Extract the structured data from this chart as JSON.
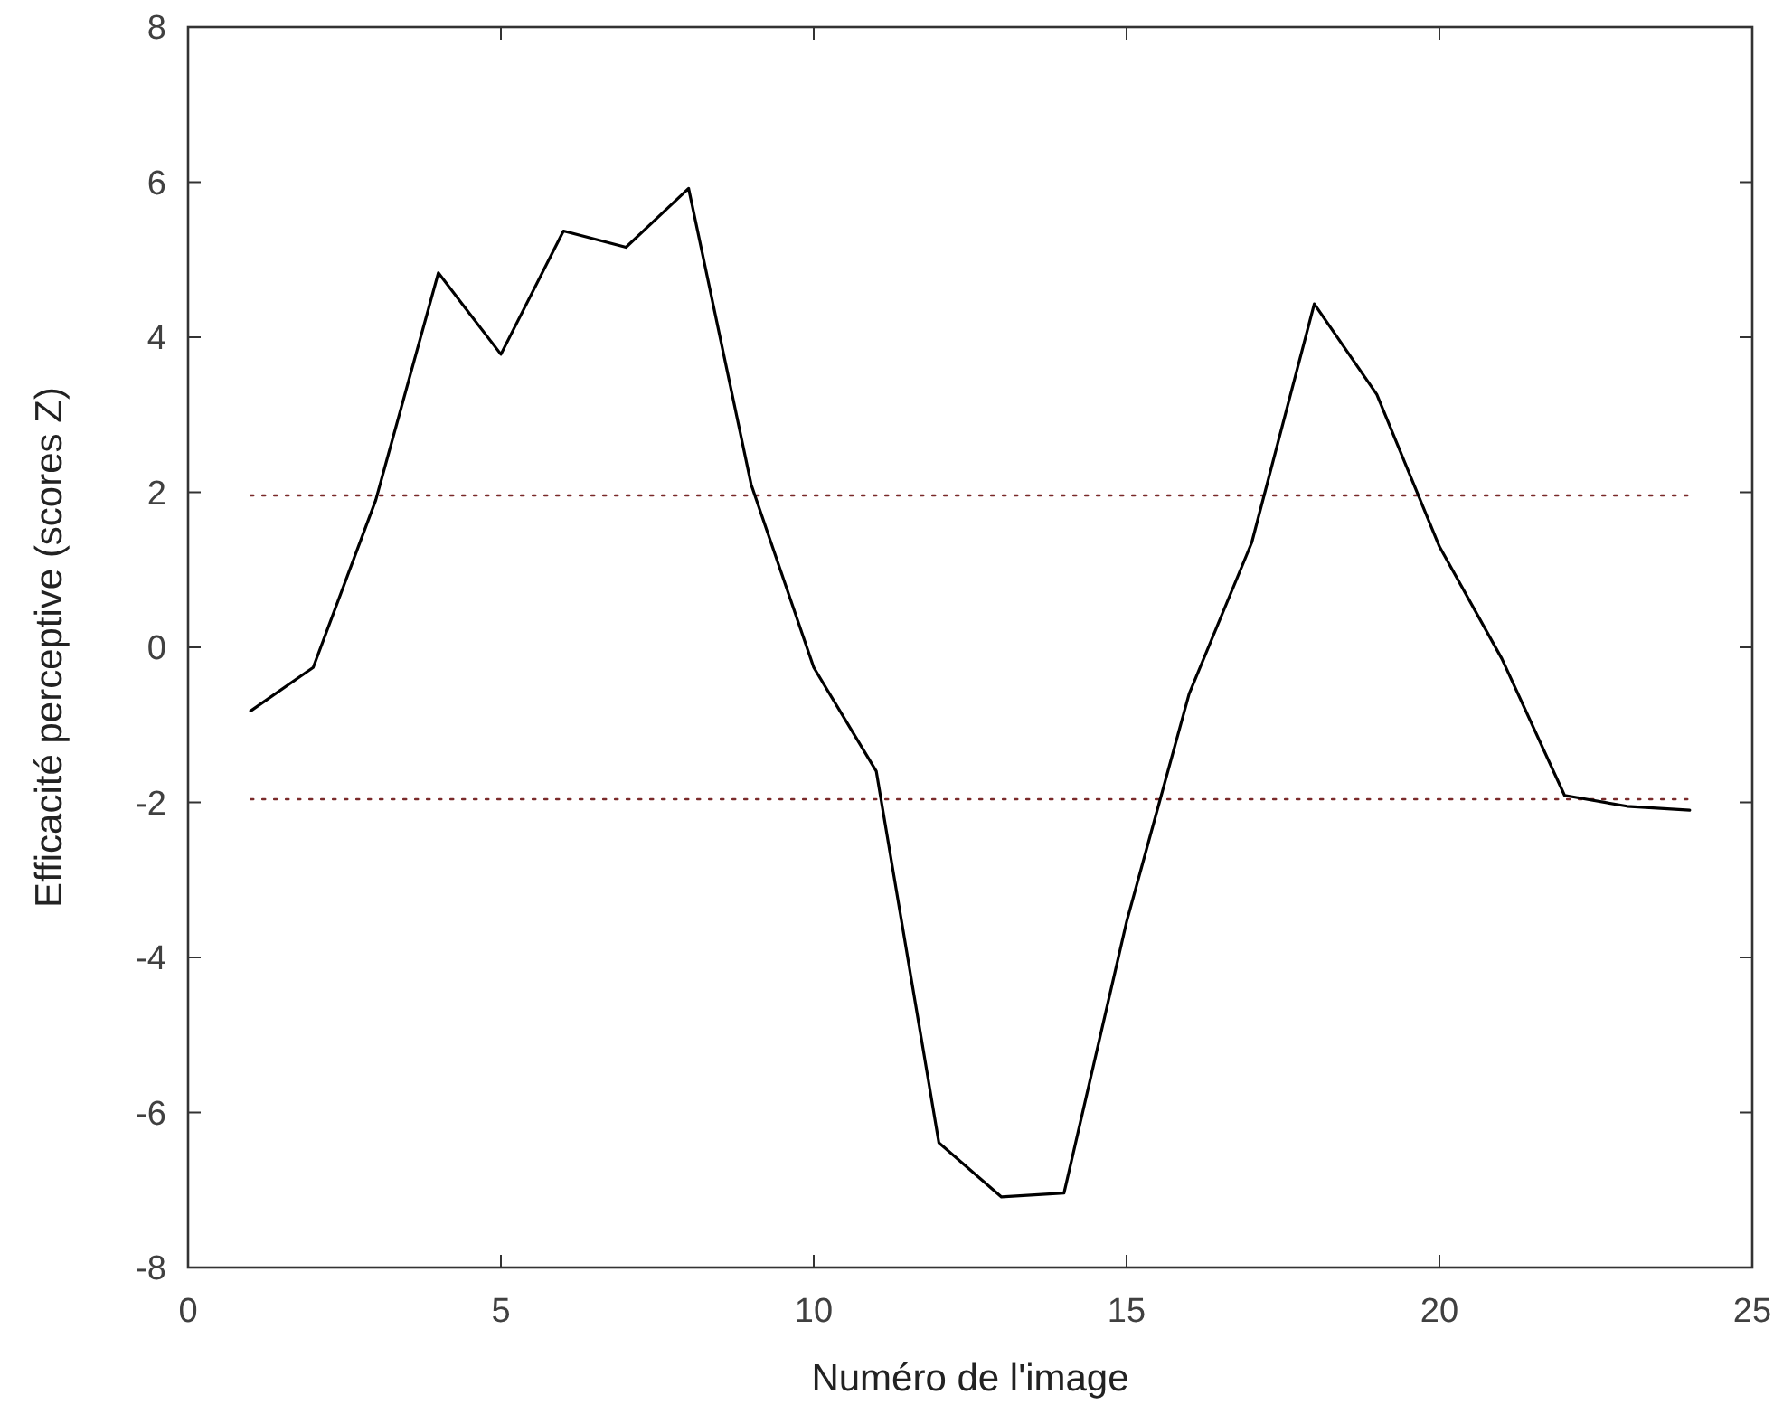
{
  "chart_data": {
    "type": "line",
    "xlabel": "Numéro de l'image",
    "ylabel": "Efficacité perceptive (scores Z)",
    "x": [
      1,
      2,
      3,
      4,
      5,
      6,
      7,
      8,
      9,
      10,
      11,
      12,
      13,
      14,
      15,
      16,
      17,
      18,
      19,
      20,
      21,
      22,
      23,
      24
    ],
    "series": [
      {
        "color": "#000000",
        "values": [
          -0.82,
          -0.26,
          1.9,
          4.83,
          3.78,
          5.37,
          5.16,
          5.92,
          2.1,
          -0.26,
          -1.6,
          -6.39,
          -7.09,
          -7.04,
          -3.54,
          -0.6,
          1.35,
          4.43,
          3.26,
          1.3,
          -0.15,
          -1.91,
          -2.05,
          -2.1
        ]
      }
    ],
    "xlim": [
      0,
      25
    ],
    "xticks": [
      0,
      5,
      10,
      15,
      20,
      25
    ],
    "ylim": [
      -8,
      8
    ],
    "yticks": [
      -8,
      -6,
      -4,
      -2,
      0,
      2,
      4,
      6,
      8
    ],
    "ref_lines": [
      {
        "axis": "y",
        "value": 1.96,
        "color": "#7a2a2a",
        "line_style": "dotted"
      },
      {
        "axis": "y",
        "value": -1.96,
        "color": "#7a2a2a",
        "line_style": "dotted"
      }
    ],
    "grid": false,
    "marker": "none",
    "line_style": "solid"
  }
}
